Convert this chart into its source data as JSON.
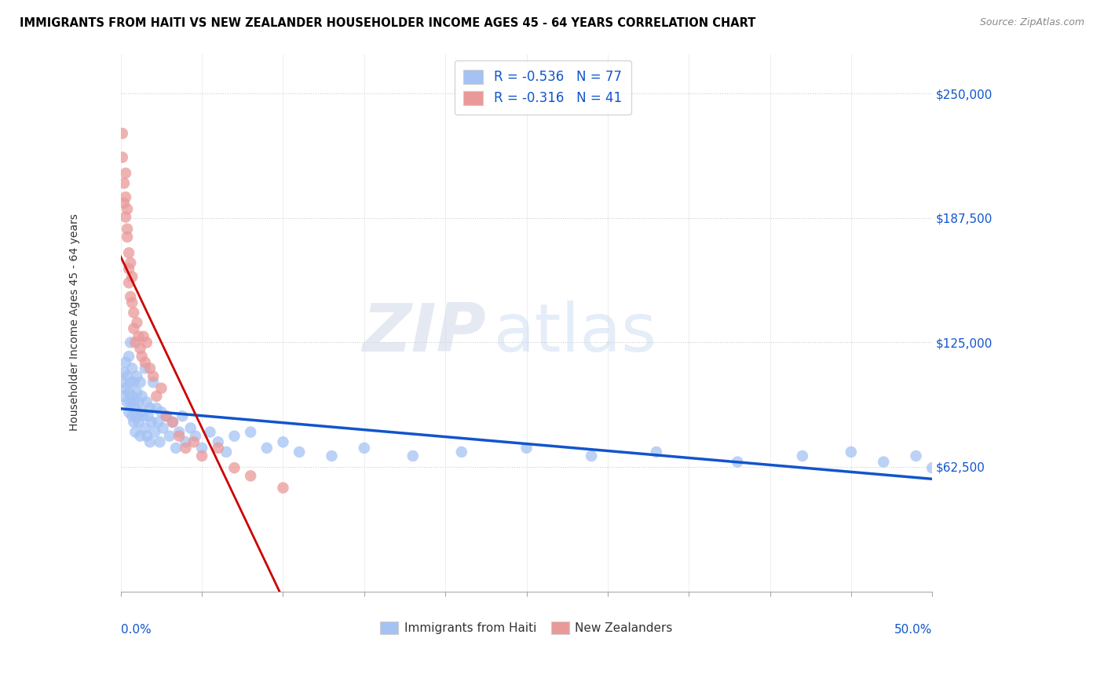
{
  "title": "IMMIGRANTS FROM HAITI VS NEW ZEALANDER HOUSEHOLDER INCOME AGES 45 - 64 YEARS CORRELATION CHART",
  "source": "Source: ZipAtlas.com",
  "ylabel": "Householder Income Ages 45 - 64 years",
  "yaxis_labels": [
    "$250,000",
    "$187,500",
    "$125,000",
    "$62,500"
  ],
  "yaxis_values": [
    250000,
    187500,
    125000,
    62500
  ],
  "xlim": [
    0.0,
    0.5
  ],
  "ylim": [
    0,
    270000
  ],
  "legend_entry1": "R = -0.536   N = 77",
  "legend_entry2": "R = -0.316   N = 41",
  "legend_label1": "Immigrants from Haiti",
  "legend_label2": "New Zealanders",
  "blue_color": "#a4c2f4",
  "pink_color": "#ea9999",
  "blue_line_color": "#1155cc",
  "pink_line_color": "#cc0000",
  "watermark_zip": "ZIP",
  "watermark_atlas": "atlas",
  "haiti_x": [
    0.001,
    0.002,
    0.002,
    0.003,
    0.003,
    0.004,
    0.004,
    0.005,
    0.005,
    0.005,
    0.006,
    0.006,
    0.006,
    0.007,
    0.007,
    0.007,
    0.008,
    0.008,
    0.008,
    0.009,
    0.009,
    0.01,
    0.01,
    0.01,
    0.011,
    0.011,
    0.012,
    0.012,
    0.013,
    0.013,
    0.014,
    0.015,
    0.015,
    0.016,
    0.016,
    0.017,
    0.018,
    0.018,
    0.019,
    0.02,
    0.021,
    0.022,
    0.023,
    0.024,
    0.025,
    0.026,
    0.028,
    0.03,
    0.032,
    0.034,
    0.036,
    0.038,
    0.04,
    0.043,
    0.046,
    0.05,
    0.055,
    0.06,
    0.065,
    0.07,
    0.08,
    0.09,
    0.1,
    0.11,
    0.13,
    0.15,
    0.18,
    0.21,
    0.25,
    0.29,
    0.33,
    0.38,
    0.42,
    0.45,
    0.47,
    0.49,
    0.5
  ],
  "haiti_y": [
    105000,
    110000,
    98000,
    102000,
    115000,
    95000,
    108000,
    90000,
    118000,
    100000,
    125000,
    95000,
    105000,
    88000,
    112000,
    98000,
    85000,
    105000,
    95000,
    92000,
    80000,
    100000,
    88000,
    108000,
    85000,
    95000,
    78000,
    105000,
    90000,
    98000,
    88000,
    112000,
    82000,
    95000,
    78000,
    88000,
    92000,
    75000,
    85000,
    105000,
    80000,
    92000,
    85000,
    75000,
    90000,
    82000,
    88000,
    78000,
    85000,
    72000,
    80000,
    88000,
    75000,
    82000,
    78000,
    72000,
    80000,
    75000,
    70000,
    78000,
    80000,
    72000,
    75000,
    70000,
    68000,
    72000,
    68000,
    70000,
    72000,
    68000,
    70000,
    65000,
    68000,
    70000,
    65000,
    68000,
    62000
  ],
  "nz_x": [
    0.001,
    0.001,
    0.002,
    0.002,
    0.003,
    0.003,
    0.003,
    0.004,
    0.004,
    0.004,
    0.005,
    0.005,
    0.005,
    0.006,
    0.006,
    0.007,
    0.007,
    0.008,
    0.008,
    0.009,
    0.01,
    0.011,
    0.012,
    0.013,
    0.014,
    0.015,
    0.016,
    0.018,
    0.02,
    0.022,
    0.025,
    0.028,
    0.032,
    0.036,
    0.04,
    0.045,
    0.05,
    0.06,
    0.07,
    0.08,
    0.1
  ],
  "nz_y": [
    230000,
    218000,
    205000,
    195000,
    210000,
    198000,
    188000,
    182000,
    192000,
    178000,
    170000,
    162000,
    155000,
    148000,
    165000,
    158000,
    145000,
    140000,
    132000,
    125000,
    135000,
    128000,
    122000,
    118000,
    128000,
    115000,
    125000,
    112000,
    108000,
    98000,
    102000,
    88000,
    85000,
    78000,
    72000,
    75000,
    68000,
    72000,
    62000,
    58000,
    52000
  ]
}
